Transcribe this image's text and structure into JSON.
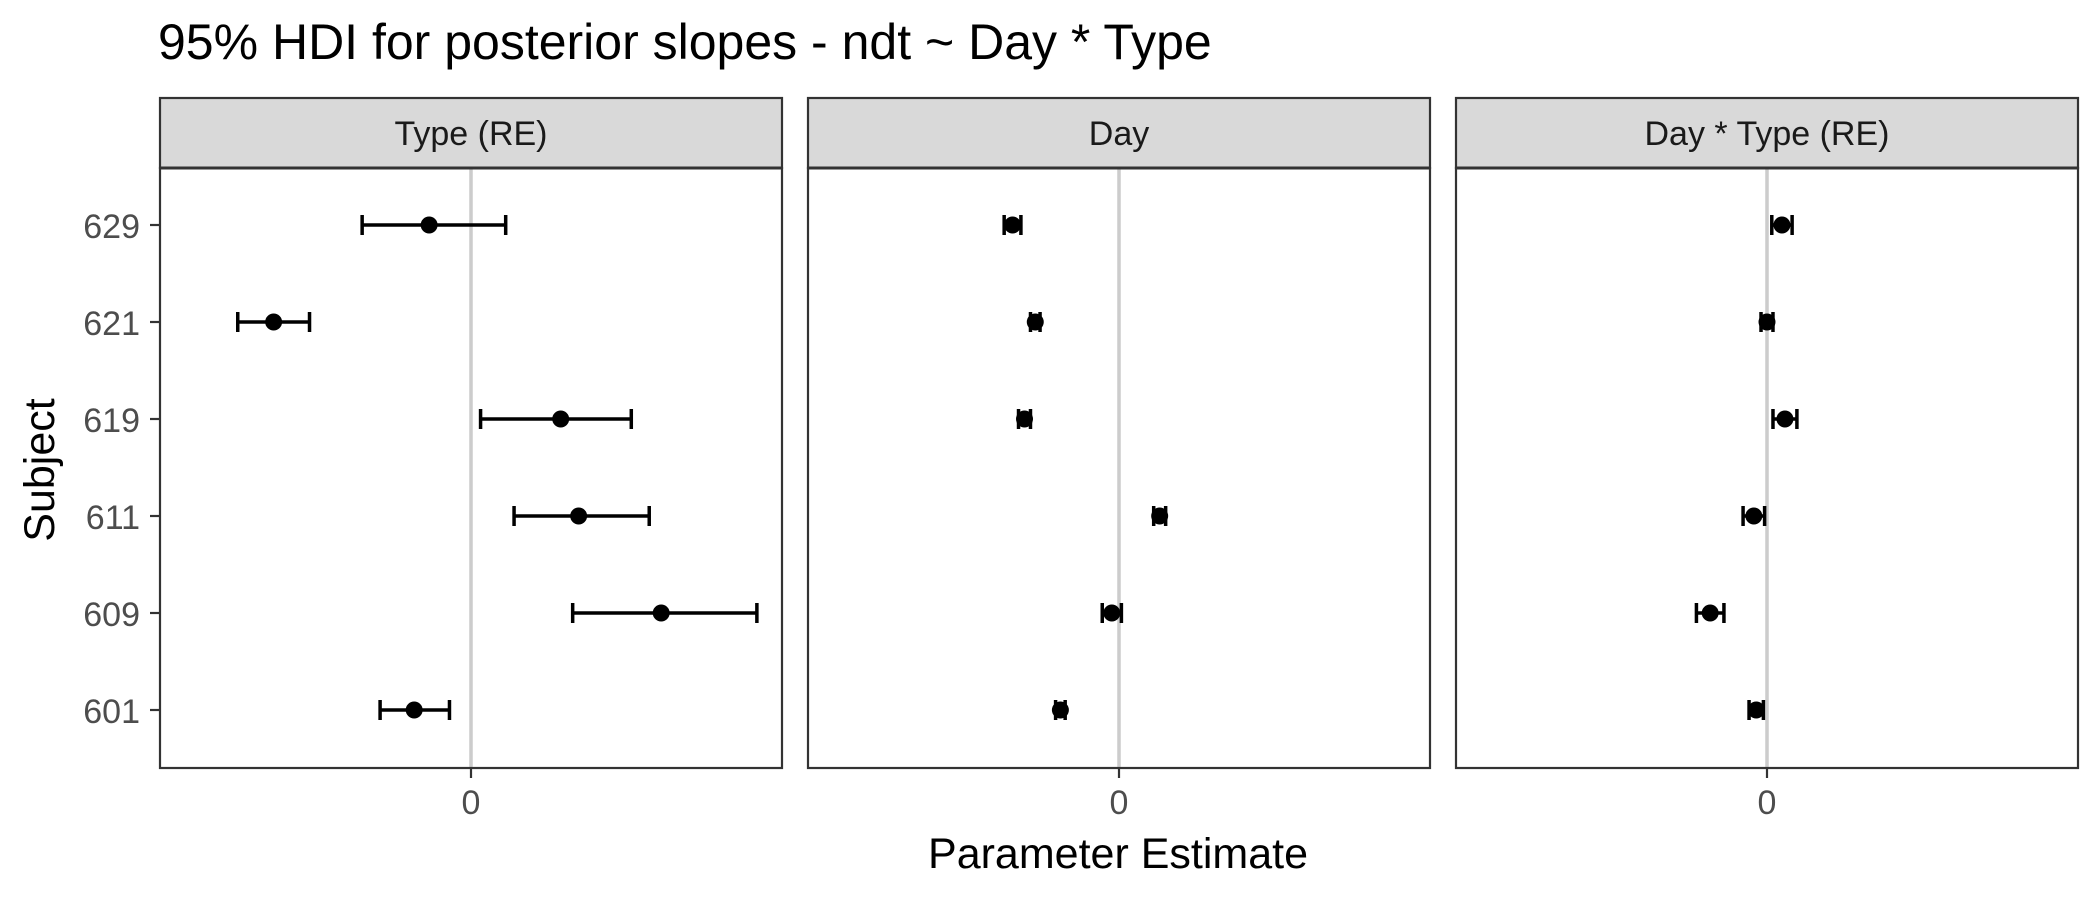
{
  "chart_data": {
    "type": "scatter",
    "subtype": "point-range (HDI intervals), faceted",
    "title": "95% HDI for posterior slopes - ndt ~ Day * Type",
    "xlabel": "Parameter Estimate",
    "ylabel": "Subject",
    "categories": [
      "601",
      "609",
      "611",
      "619",
      "621",
      "629"
    ],
    "reference_line_x": 0,
    "grid": false,
    "legend": "none",
    "panels": [
      {
        "strip_label": "Type (RE)",
        "x_ticks": [
          0
        ],
        "xlim": [
          -0.52,
          0.52
        ],
        "points": [
          {
            "subject": "601",
            "estimate": -0.095,
            "lower": -0.152,
            "upper": -0.036
          },
          {
            "subject": "609",
            "estimate": 0.318,
            "lower": 0.17,
            "upper": 0.478
          },
          {
            "subject": "611",
            "estimate": 0.18,
            "lower": 0.072,
            "upper": 0.298
          },
          {
            "subject": "619",
            "estimate": 0.15,
            "lower": 0.016,
            "upper": 0.268
          },
          {
            "subject": "621",
            "estimate": -0.33,
            "lower": -0.39,
            "upper": -0.27
          },
          {
            "subject": "629",
            "estimate": -0.07,
            "lower": -0.182,
            "upper": 0.058
          }
        ]
      },
      {
        "strip_label": "Day",
        "x_ticks": [
          0
        ],
        "xlim": [
          -0.52,
          0.52
        ],
        "points": [
          {
            "subject": "601",
            "estimate": -0.098,
            "lower": -0.106,
            "upper": -0.09
          },
          {
            "subject": "609",
            "estimate": -0.012,
            "lower": -0.028,
            "upper": 0.004
          },
          {
            "subject": "611",
            "estimate": 0.068,
            "lower": 0.058,
            "upper": 0.078
          },
          {
            "subject": "619",
            "estimate": -0.158,
            "lower": -0.168,
            "upper": -0.148
          },
          {
            "subject": "621",
            "estimate": -0.14,
            "lower": -0.148,
            "upper": -0.132
          },
          {
            "subject": "629",
            "estimate": -0.178,
            "lower": -0.192,
            "upper": -0.164
          }
        ]
      },
      {
        "strip_label": "Day * Type (RE)",
        "x_ticks": [
          0
        ],
        "xlim": [
          -0.52,
          0.52
        ],
        "points": [
          {
            "subject": "601",
            "estimate": -0.018,
            "lower": -0.03,
            "upper": -0.006
          },
          {
            "subject": "609",
            "estimate": -0.095,
            "lower": -0.118,
            "upper": -0.072
          },
          {
            "subject": "611",
            "estimate": -0.022,
            "lower": -0.04,
            "upper": -0.004
          },
          {
            "subject": "619",
            "estimate": 0.03,
            "lower": 0.01,
            "upper": 0.05
          },
          {
            "subject": "621",
            "estimate": 0.0,
            "lower": -0.01,
            "upper": 0.01
          },
          {
            "subject": "629",
            "estimate": 0.025,
            "lower": 0.008,
            "upper": 0.042
          }
        ]
      }
    ]
  },
  "colors": {
    "point": "#000000",
    "errorbar": "#000000",
    "zero_line": "#cccccc",
    "strip_fill": "#d9d9d9",
    "panel_border": "#333333",
    "tick_label": "#4d4d4d",
    "text": "#000000"
  }
}
